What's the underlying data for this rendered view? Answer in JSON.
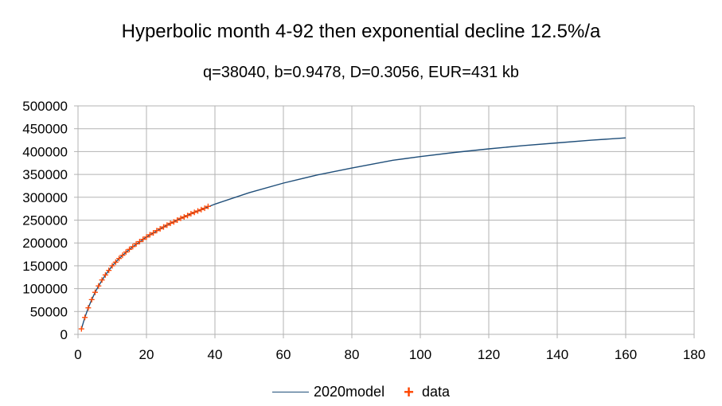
{
  "chart_data": {
    "type": "line",
    "title": "Hyperbolic month 4-92 then exponential decline 12.5%/a",
    "subtitle": "q=38040, b=0.9478, D=0.3056, EUR=431 kb",
    "xlim": [
      0,
      180
    ],
    "ylim": [
      0,
      500000
    ],
    "x_ticks": [
      "0",
      "20",
      "40",
      "60",
      "80",
      "100",
      "120",
      "140",
      "160",
      "180"
    ],
    "y_ticks": [
      "0",
      "50000",
      "100000",
      "150000",
      "200000",
      "250000",
      "300000",
      "350000",
      "400000",
      "450000",
      "500000"
    ],
    "grid": true,
    "legend_position": "bottom",
    "colors": {
      "model": "#1f4e79",
      "data": "#ff4500"
    },
    "series": [
      {
        "name": "2020model",
        "style": "line",
        "x": [
          1,
          2,
          3,
          4,
          5,
          6,
          8,
          10,
          12,
          15,
          20,
          25,
          30,
          35,
          40,
          50,
          60,
          70,
          80,
          92,
          100,
          110,
          120,
          130,
          140,
          150,
          160
        ],
        "y": [
          12000,
          37000,
          58000,
          76000,
          92000,
          106000,
          130000,
          150000,
          166000,
          186000,
          213000,
          235000,
          254000,
          270000,
          285000,
          310000,
          331000,
          349000,
          364000,
          381000,
          389000,
          398000,
          406000,
          413000,
          419000,
          425000,
          430000
        ]
      },
      {
        "name": "data",
        "style": "marker",
        "x": [
          1,
          2,
          3,
          4,
          5,
          6,
          7,
          8,
          9,
          10,
          11,
          12,
          13,
          14,
          15,
          16,
          17,
          18,
          19,
          20,
          21,
          22,
          23,
          24,
          25,
          26,
          27,
          28,
          29,
          30,
          31,
          32,
          33,
          34,
          35,
          36,
          37,
          38
        ],
        "y": [
          12000,
          37000,
          58000,
          76000,
          92000,
          106000,
          119000,
          130000,
          140000,
          150000,
          158000,
          166000,
          173000,
          180000,
          186000,
          192000,
          198000,
          203000,
          208000,
          213000,
          218000,
          222000,
          227000,
          231000,
          235000,
          239000,
          243000,
          246000,
          250000,
          254000,
          257000,
          260000,
          264000,
          267000,
          270000,
          273000,
          276000,
          280000
        ]
      }
    ]
  }
}
